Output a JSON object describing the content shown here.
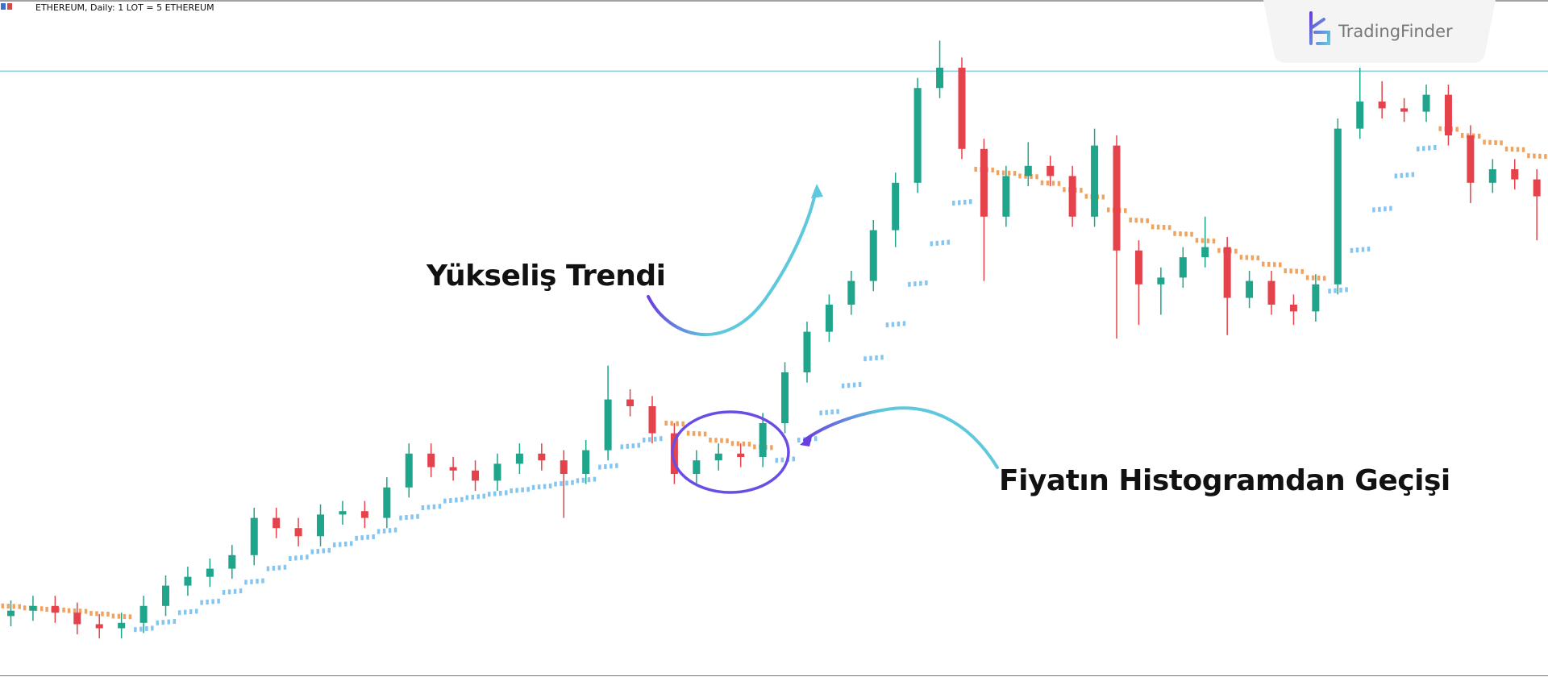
{
  "chart_data": {
    "type": "candlestick",
    "title": "ETHEREUM, Daily:  1 LOT = 5 ETHEREUM",
    "brand": "TradingFinder",
    "annotations": [
      "Yükseliş Trendi",
      "Fiyatın Histogramdan Geçişi"
    ],
    "ylim": [
      0,
      100
    ],
    "level": 89.5,
    "level_color": "#8fd3df",
    "up_color": "#1ea58b",
    "down_color": "#e5434b",
    "open": [
      9.0,
      9.8,
      10.5,
      9.5,
      7.8,
      7.2,
      8.0,
      10.5,
      13.5,
      14.8,
      16.0,
      18.0,
      23.5,
      22.0,
      20.8,
      24.0,
      24.5,
      23.5,
      28.0,
      33.0,
      31.0,
      30.5,
      29.0,
      31.5,
      33.0,
      32.0,
      30.0,
      33.5,
      41.0,
      40.0,
      36.0,
      30.0,
      32.0,
      33.0,
      32.5,
      37.5,
      45.0,
      51.0,
      55.0,
      58.5,
      66.0,
      73.0,
      87.0,
      90.0,
      78.0,
      68.0,
      74.0,
      75.5,
      74.0,
      68.0,
      78.5,
      63.0,
      58.0,
      59.0,
      62.0,
      63.5,
      56.0,
      58.5,
      55.0,
      54.0,
      58.0,
      81.0,
      85.0,
      84.0,
      83.5,
      86.0,
      80.0,
      73.0,
      75.0,
      73.5
    ],
    "high": [
      11.3,
      12.0,
      12.0,
      11.0,
      9.3,
      9.5,
      12.0,
      15.0,
      16.3,
      17.5,
      19.5,
      25.0,
      25.0,
      23.5,
      25.5,
      26.0,
      26.0,
      29.5,
      34.5,
      34.5,
      32.5,
      32.0,
      33.0,
      34.5,
      34.5,
      33.5,
      35.0,
      46.0,
      42.5,
      41.5,
      37.5,
      33.5,
      34.5,
      34.5,
      39.0,
      46.5,
      52.5,
      56.5,
      60.0,
      67.5,
      74.5,
      88.5,
      94.0,
      91.5,
      79.5,
      75.5,
      79.0,
      77.0,
      75.5,
      81.0,
      80.0,
      64.5,
      60.5,
      63.5,
      68.0,
      65.0,
      60.0,
      60.0,
      56.5,
      59.5,
      82.5,
      90.0,
      88.0,
      85.5,
      87.5,
      87.5,
      81.5,
      76.5,
      76.5,
      75.0
    ],
    "low": [
      7.5,
      8.3,
      8.0,
      6.3,
      5.7,
      5.7,
      6.5,
      9.0,
      12.0,
      13.3,
      14.5,
      16.5,
      20.5,
      19.3,
      19.3,
      22.5,
      22.0,
      22.0,
      26.5,
      29.5,
      29.0,
      27.5,
      27.5,
      30.0,
      30.5,
      23.5,
      28.5,
      32.0,
      38.5,
      34.5,
      28.5,
      28.5,
      30.5,
      31.0,
      31.0,
      36.0,
      43.5,
      49.5,
      53.5,
      57.0,
      63.5,
      71.5,
      85.5,
      76.5,
      58.5,
      66.5,
      72.5,
      72.5,
      66.5,
      66.5,
      50.0,
      52.0,
      53.5,
      57.5,
      60.5,
      50.5,
      54.5,
      53.5,
      52.0,
      52.5,
      56.5,
      79.5,
      82.5,
      82.0,
      82.0,
      78.5,
      70.0,
      71.5,
      72.0,
      64.5
    ],
    "close": [
      9.8,
      10.5,
      9.5,
      7.8,
      7.2,
      8.0,
      10.5,
      13.5,
      14.8,
      16.0,
      18.0,
      23.5,
      22.0,
      20.8,
      24.0,
      24.5,
      23.5,
      28.0,
      33.0,
      31.0,
      30.5,
      29.0,
      31.5,
      33.0,
      32.0,
      30.0,
      33.5,
      41.0,
      40.0,
      36.0,
      30.0,
      32.0,
      33.0,
      32.5,
      37.5,
      45.0,
      51.0,
      55.0,
      58.5,
      66.0,
      73.0,
      87.0,
      90.0,
      78.0,
      68.0,
      74.0,
      75.5,
      74.0,
      68.0,
      78.5,
      63.0,
      58.0,
      59.0,
      62.0,
      63.5,
      56.0,
      58.5,
      55.0,
      54.0,
      58.0,
      81.0,
      85.0,
      84.0,
      83.5,
      86.0,
      80.0,
      73.0,
      75.0,
      73.5,
      71.0
    ],
    "indicator": {
      "up_color": "#85c6f0",
      "down_color": "#f0a35e",
      "up": [
        null,
        null,
        null,
        null,
        null,
        null,
        7.0,
        8.0,
        9.5,
        11.0,
        12.5,
        14.0,
        16.0,
        17.5,
        18.5,
        19.5,
        20.5,
        21.5,
        23.5,
        25.0,
        26.0,
        26.5,
        27.0,
        27.5,
        28.0,
        28.5,
        29.0,
        31.0,
        34.0,
        35.0,
        null,
        null,
        null,
        null,
        null,
        32.0,
        35.0,
        39.0,
        43.0,
        47.0,
        52.0,
        58.0,
        64.0,
        70.0,
        null,
        null,
        null,
        null,
        null,
        null,
        null,
        null,
        null,
        null,
        null,
        null,
        null,
        null,
        null,
        null,
        57.0,
        63.0,
        69.0,
        74.0,
        78.0,
        null,
        null,
        null,
        null,
        null
      ],
      "down": [
        10.5,
        10.2,
        10.0,
        9.8,
        9.4,
        9.0,
        null,
        null,
        null,
        null,
        null,
        null,
        null,
        null,
        null,
        null,
        null,
        null,
        null,
        null,
        null,
        null,
        null,
        null,
        null,
        null,
        null,
        null,
        null,
        null,
        37.5,
        36.0,
        35.0,
        34.5,
        34.0,
        null,
        null,
        null,
        null,
        null,
        null,
        null,
        null,
        null,
        75.0,
        74.5,
        74.0,
        73.0,
        72.0,
        71.0,
        69.0,
        67.5,
        66.5,
        65.5,
        64.5,
        63.0,
        62.0,
        61.0,
        60.0,
        59.0,
        null,
        null,
        null,
        null,
        null,
        81.0,
        80.0,
        79.0,
        78.0,
        77.0
      ]
    }
  }
}
